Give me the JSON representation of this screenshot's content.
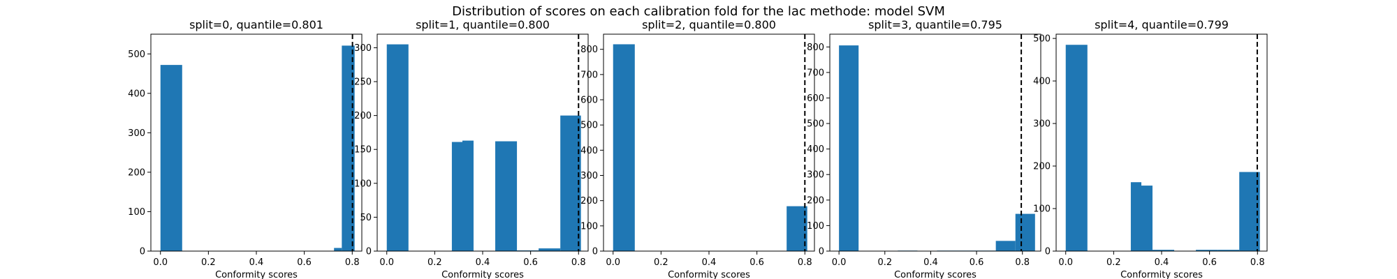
{
  "figure": {
    "suptitle": "Distribution of scores on each calibration fold for the lac methode: model SVM"
  },
  "colors": {
    "bar": "#1f77b4",
    "quantile_line": "#000000"
  },
  "chart_data": [
    {
      "type": "bar",
      "title": "split=0, quantile=0.801",
      "xlabel": "Conformity scores",
      "ylabel": "",
      "quantile": 0.801,
      "xlim": [
        -0.04,
        0.84
      ],
      "ylim": [
        0,
        550
      ],
      "xticks": [
        0.0,
        0.2,
        0.4,
        0.6,
        0.8
      ],
      "yticks": [
        0,
        100,
        200,
        300,
        400,
        500
      ],
      "bins": [
        {
          "x0": 0.0,
          "x1": 0.0905,
          "count": 472
        },
        {
          "x0": 0.0905,
          "x1": 0.181,
          "count": 0
        },
        {
          "x0": 0.181,
          "x1": 0.2715,
          "count": 0
        },
        {
          "x0": 0.2715,
          "x1": 0.362,
          "count": 0
        },
        {
          "x0": 0.362,
          "x1": 0.4525,
          "count": 0
        },
        {
          "x0": 0.4525,
          "x1": 0.543,
          "count": 0
        },
        {
          "x0": 0.543,
          "x1": 0.6335,
          "count": 0
        },
        {
          "x0": 0.6335,
          "x1": 0.724,
          "count": 0
        },
        {
          "x0": 0.724,
          "x1": 0.7565,
          "count": 8
        },
        {
          "x0": 0.7565,
          "x1": 0.81,
          "count": 521
        }
      ]
    },
    {
      "type": "bar",
      "title": "split=1, quantile=0.800",
      "xlabel": "Conformity scores",
      "ylabel": "",
      "quantile": 0.8,
      "xlim": [
        -0.04,
        0.84
      ],
      "ylim": [
        0,
        320
      ],
      "xticks": [
        0.0,
        0.2,
        0.4,
        0.6,
        0.8
      ],
      "yticks": [
        0,
        50,
        100,
        150,
        200,
        250,
        300
      ],
      "bins": [
        {
          "x0": 0.0,
          "x1": 0.0905,
          "count": 305
        },
        {
          "x0": 0.0905,
          "x1": 0.181,
          "count": 0
        },
        {
          "x0": 0.181,
          "x1": 0.2715,
          "count": 0
        },
        {
          "x0": 0.2715,
          "x1": 0.3155,
          "count": 161
        },
        {
          "x0": 0.3155,
          "x1": 0.362,
          "count": 163
        },
        {
          "x0": 0.362,
          "x1": 0.4525,
          "count": 0
        },
        {
          "x0": 0.4525,
          "x1": 0.543,
          "count": 162
        },
        {
          "x0": 0.543,
          "x1": 0.6335,
          "count": 1
        },
        {
          "x0": 0.6335,
          "x1": 0.724,
          "count": 4
        },
        {
          "x0": 0.724,
          "x1": 0.81,
          "count": 200
        }
      ]
    },
    {
      "type": "bar",
      "title": "split=2, quantile=0.800",
      "xlabel": "Conformity scores",
      "ylabel": "",
      "quantile": 0.8,
      "xlim": [
        -0.04,
        0.84
      ],
      "ylim": [
        0,
        860
      ],
      "xticks": [
        0.0,
        0.2,
        0.4,
        0.6,
        0.8
      ],
      "yticks": [
        0,
        100,
        200,
        300,
        400,
        500,
        600,
        700,
        800
      ],
      "bins": [
        {
          "x0": 0.0,
          "x1": 0.0905,
          "count": 820
        },
        {
          "x0": 0.0905,
          "x1": 0.181,
          "count": 0
        },
        {
          "x0": 0.181,
          "x1": 0.2715,
          "count": 0
        },
        {
          "x0": 0.2715,
          "x1": 0.362,
          "count": 0
        },
        {
          "x0": 0.362,
          "x1": 0.4525,
          "count": 0
        },
        {
          "x0": 0.4525,
          "x1": 0.543,
          "count": 0
        },
        {
          "x0": 0.543,
          "x1": 0.6335,
          "count": 0
        },
        {
          "x0": 0.6335,
          "x1": 0.724,
          "count": 0
        },
        {
          "x0": 0.724,
          "x1": 0.81,
          "count": 178
        }
      ]
    },
    {
      "type": "bar",
      "title": "split=3, quantile=0.795",
      "xlabel": "Conformity scores",
      "ylabel": "",
      "quantile": 0.795,
      "xlim": [
        -0.04,
        0.88
      ],
      "ylim": [
        0,
        850
      ],
      "xticks": [
        0.0,
        0.2,
        0.4,
        0.6,
        0.8
      ],
      "yticks": [
        0,
        100,
        200,
        300,
        400,
        500,
        600,
        700,
        800
      ],
      "bins": [
        {
          "x0": 0.0,
          "x1": 0.0855,
          "count": 806
        },
        {
          "x0": 0.0855,
          "x1": 0.171,
          "count": 0
        },
        {
          "x0": 0.171,
          "x1": 0.2565,
          "count": 0
        },
        {
          "x0": 0.2565,
          "x1": 0.342,
          "count": 2
        },
        {
          "x0": 0.342,
          "x1": 0.4275,
          "count": 0
        },
        {
          "x0": 0.4275,
          "x1": 0.513,
          "count": 2
        },
        {
          "x0": 0.513,
          "x1": 0.5985,
          "count": 2
        },
        {
          "x0": 0.5985,
          "x1": 0.684,
          "count": 2
        },
        {
          "x0": 0.684,
          "x1": 0.7695,
          "count": 40
        },
        {
          "x0": 0.7695,
          "x1": 0.855,
          "count": 146
        }
      ]
    },
    {
      "type": "bar",
      "title": "split=4, quantile=0.799",
      "xlabel": "Conformity scores",
      "ylabel": "",
      "quantile": 0.799,
      "xlim": [
        -0.04,
        0.84
      ],
      "ylim": [
        0,
        510
      ],
      "xticks": [
        0.0,
        0.2,
        0.4,
        0.6,
        0.8
      ],
      "yticks": [
        0,
        100,
        200,
        300,
        400,
        500
      ],
      "bins": [
        {
          "x0": 0.0,
          "x1": 0.0905,
          "count": 485
        },
        {
          "x0": 0.0905,
          "x1": 0.181,
          "count": 0
        },
        {
          "x0": 0.181,
          "x1": 0.2715,
          "count": 0
        },
        {
          "x0": 0.2715,
          "x1": 0.3155,
          "count": 162
        },
        {
          "x0": 0.3155,
          "x1": 0.362,
          "count": 154
        },
        {
          "x0": 0.362,
          "x1": 0.4525,
          "count": 3
        },
        {
          "x0": 0.4525,
          "x1": 0.543,
          "count": 0
        },
        {
          "x0": 0.543,
          "x1": 0.6335,
          "count": 3
        },
        {
          "x0": 0.6335,
          "x1": 0.724,
          "count": 3
        },
        {
          "x0": 0.724,
          "x1": 0.81,
          "count": 186
        }
      ]
    }
  ]
}
